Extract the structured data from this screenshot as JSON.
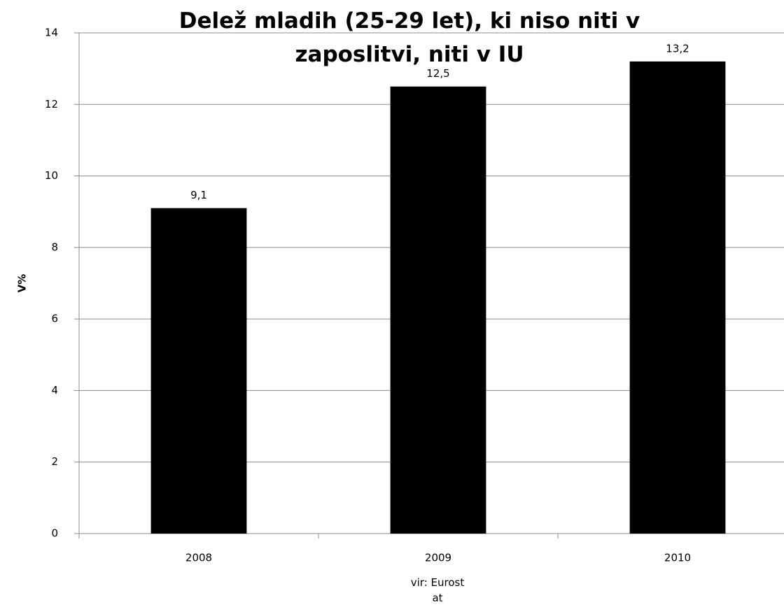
{
  "chart_data": {
    "type": "bar",
    "title": "Delež mladih (25-29 let), ki niso niti v zaposlitvi, niti v IU",
    "y_label": "V%",
    "source": "vir: Eurostat",
    "categories": [
      "2008",
      "2009",
      "2010"
    ],
    "values": [
      9.1,
      12.5,
      13.2
    ],
    "value_labels": [
      "9,1",
      "12,5",
      "13,2"
    ],
    "color": "#000000",
    "ylim": [
      0,
      14
    ],
    "yticks": [
      0,
      2,
      4,
      6,
      8,
      10,
      12,
      14
    ],
    "grid": true
  }
}
